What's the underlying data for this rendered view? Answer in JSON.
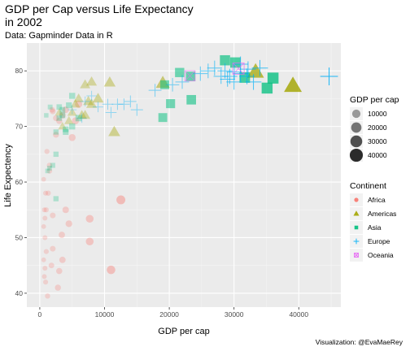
{
  "chart_data": {
    "type": "scatter",
    "title_line1": "GDP per Cap versus Life Expectancy",
    "title_line2": "in 2002",
    "subtitle": "Data: Gapminder Data in R",
    "xlabel": "GDP per cap",
    "ylabel": "Life Expectency",
    "caption": "Visualization: @EvaMaeRey",
    "xlim": [
      -2000,
      46500
    ],
    "ylim": [
      37.5,
      85
    ],
    "x_ticks": [
      0,
      10000,
      20000,
      30000,
      40000
    ],
    "y_ticks": [
      40,
      50,
      60,
      70,
      80
    ],
    "grid": true,
    "size_legend": {
      "title": "GDP per cap",
      "values": [
        10000,
        20000,
        30000,
        40000
      ],
      "labels": [
        "10000",
        "20000",
        "30000",
        "40000"
      ]
    },
    "color_legend": {
      "title": "Continent",
      "entries": [
        {
          "name": "Africa",
          "color": "#F8766D",
          "shape": "circle"
        },
        {
          "name": "Americas",
          "color": "#A3A500",
          "shape": "triangle"
        },
        {
          "name": "Asia",
          "color": "#00BF7D",
          "shape": "square"
        },
        {
          "name": "Europe",
          "color": "#00B0F6",
          "shape": "plus"
        },
        {
          "name": "Oceania",
          "color": "#E76BF3",
          "shape": "boxx"
        }
      ]
    },
    "series": [
      {
        "name": "Africa",
        "points": [
          [
            12521,
            56.8
          ],
          [
            7710,
            53.4
          ],
          [
            7710,
            49.3
          ],
          [
            11003,
            44.2
          ],
          [
            5000,
            68.0
          ],
          [
            2000,
            72.7
          ],
          [
            1500,
            62.0
          ],
          [
            3000,
            71.0
          ],
          [
            4000,
            73.0
          ],
          [
            2500,
            71.5
          ],
          [
            900,
            58.0
          ],
          [
            700,
            55.0
          ],
          [
            600,
            52.0
          ],
          [
            800,
            50.0
          ],
          [
            1000,
            47.5
          ],
          [
            600,
            46.0
          ],
          [
            800,
            44.5
          ],
          [
            700,
            43.0
          ],
          [
            900,
            42.0
          ],
          [
            1200,
            39.5
          ],
          [
            2000,
            48.0
          ],
          [
            3400,
            50.5
          ],
          [
            4500,
            52.5
          ],
          [
            2800,
            41.0
          ],
          [
            3500,
            46.0
          ],
          [
            1300,
            58.0
          ],
          [
            1500,
            63.0
          ],
          [
            1100,
            65.5
          ],
          [
            600,
            60.5
          ],
          [
            800,
            53.5
          ],
          [
            4000,
            55.0
          ],
          [
            2000,
            54.0
          ],
          [
            1800,
            45.0
          ],
          [
            1000,
            55.0
          ],
          [
            3000,
            44.0
          ],
          [
            2500,
            68.5
          ],
          [
            1900,
            73.0
          ],
          [
            5500,
            71.0
          ],
          [
            6000,
            74.0
          ],
          [
            3500,
            72.0
          ]
        ]
      },
      {
        "name": "Americas",
        "points": [
          [
            39097,
            77.3
          ],
          [
            33329,
            79.8
          ],
          [
            8000,
            78.0
          ],
          [
            10800,
            77.9
          ],
          [
            6500,
            72.0
          ],
          [
            7000,
            77.5
          ],
          [
            5500,
            74.0
          ],
          [
            4500,
            71.0
          ],
          [
            7500,
            74.5
          ],
          [
            9000,
            75.0
          ],
          [
            3500,
            70.0
          ],
          [
            6000,
            75.0
          ],
          [
            5000,
            72.5
          ],
          [
            8000,
            74.0
          ],
          [
            11500,
            69.0
          ],
          [
            19000,
            77.8
          ],
          [
            7000,
            72.0
          ],
          [
            3000,
            72.5
          ]
        ]
      },
      {
        "name": "Asia",
        "points": [
          [
            28605,
            81.9
          ],
          [
            30209,
            81.5
          ],
          [
            36023,
            78.7
          ],
          [
            35110,
            76.9
          ],
          [
            31656,
            78.8
          ],
          [
            23300,
            79.0
          ],
          [
            21600,
            79.7
          ],
          [
            19300,
            77.5
          ],
          [
            19000,
            71.6
          ],
          [
            20200,
            74.1
          ],
          [
            23400,
            74.8
          ],
          [
            5000,
            70.0
          ],
          [
            3500,
            72.0
          ],
          [
            2000,
            63.0
          ],
          [
            2500,
            65.0
          ],
          [
            1200,
            62.0
          ],
          [
            4000,
            69.0
          ],
          [
            3000,
            71.5
          ],
          [
            2500,
            69.0
          ],
          [
            1000,
            72.0
          ],
          [
            3500,
            73.0
          ],
          [
            1600,
            73.5
          ],
          [
            6000,
            71.5
          ],
          [
            4500,
            73.8
          ],
          [
            5000,
            75.5
          ],
          [
            2500,
            57.0
          ],
          [
            1500,
            62.5
          ],
          [
            3000,
            73.5
          ],
          [
            4000,
            69.5
          ]
        ]
      },
      {
        "name": "Europe",
        "points": [
          [
            44684,
            79.0
          ],
          [
            32166,
            80.3
          ],
          [
            30035,
            79.8
          ],
          [
            29341,
            79.0
          ],
          [
            28604,
            80.0
          ],
          [
            27000,
            80.5
          ],
          [
            29000,
            78.5
          ],
          [
            31000,
            79.5
          ],
          [
            33000,
            78.0
          ],
          [
            32000,
            79.0
          ],
          [
            34000,
            80.5
          ],
          [
            30000,
            78.0
          ],
          [
            26000,
            80.0
          ],
          [
            24800,
            79.5
          ],
          [
            22000,
            78.0
          ],
          [
            20500,
            77.5
          ],
          [
            17800,
            76.5
          ],
          [
            14000,
            74.5
          ],
          [
            12000,
            74.0
          ],
          [
            10500,
            74.0
          ],
          [
            8000,
            75.5
          ],
          [
            7000,
            74.5
          ],
          [
            5000,
            73.0
          ],
          [
            6500,
            71.5
          ],
          [
            9000,
            73.5
          ],
          [
            15000,
            73.0
          ],
          [
            13000,
            74.0
          ],
          [
            11000,
            72.5
          ],
          [
            28000,
            79.0
          ],
          [
            31000,
            81.2
          ]
        ]
      },
      {
        "name": "Oceania",
        "points": [
          [
            30688,
            80.4
          ],
          [
            23190,
            79.1
          ]
        ]
      }
    ]
  }
}
